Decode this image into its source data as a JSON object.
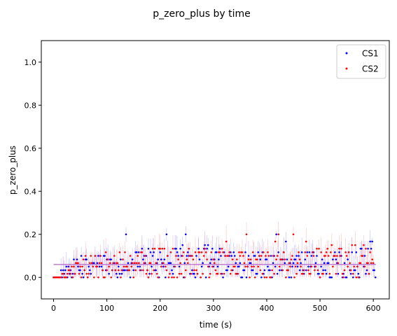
{
  "chart_data": {
    "type": "scatter",
    "title": "p_zero_plus by time",
    "xlabel": "time (s)",
    "ylabel": "p_zero_plus",
    "xlim": [
      -23,
      630
    ],
    "ylim": [
      -0.1,
      1.1
    ],
    "xticks": [
      0,
      100,
      200,
      300,
      400,
      500,
      600
    ],
    "yticks": [
      0.0,
      0.2,
      0.4,
      0.6,
      0.8,
      1.0
    ],
    "legend_position": "top-right",
    "error_bars": true,
    "reference_line": {
      "y": 0.06,
      "x_range": [
        0,
        605
      ],
      "color": "#a855c8"
    },
    "series": [
      {
        "name": "CS1",
        "color": "#0000ff",
        "sample_every_s": 2,
        "x_range": [
          0,
          605
        ],
        "y_keypoints": [
          [
            0,
            0.0
          ],
          [
            10,
            0.0
          ],
          [
            20,
            0.02
          ],
          [
            40,
            0.04
          ],
          [
            60,
            0.05
          ],
          [
            80,
            0.05
          ],
          [
            100,
            0.06
          ],
          [
            150,
            0.06
          ],
          [
            200,
            0.07
          ],
          [
            250,
            0.07
          ],
          [
            270,
            0.08
          ],
          [
            300,
            0.07
          ],
          [
            350,
            0.06
          ],
          [
            400,
            0.06
          ],
          [
            450,
            0.06
          ],
          [
            500,
            0.06
          ],
          [
            550,
            0.07
          ],
          [
            590,
            0.07
          ],
          [
            598,
            0.12
          ],
          [
            600,
            0.02
          ],
          [
            605,
            0.0
          ]
        ],
        "y_max_observed": 0.2
      },
      {
        "name": "CS2",
        "color": "#ff0000",
        "sample_every_s": 2,
        "x_range": [
          0,
          600
        ],
        "y_keypoints": [
          [
            0,
            0.0
          ],
          [
            15,
            0.0
          ],
          [
            25,
            0.02
          ],
          [
            40,
            0.03
          ],
          [
            60,
            0.05
          ],
          [
            80,
            0.05
          ],
          [
            100,
            0.06
          ],
          [
            150,
            0.06
          ],
          [
            200,
            0.07
          ],
          [
            250,
            0.07
          ],
          [
            300,
            0.07
          ],
          [
            350,
            0.06
          ],
          [
            400,
            0.06
          ],
          [
            450,
            0.06
          ],
          [
            500,
            0.07
          ],
          [
            550,
            0.07
          ],
          [
            570,
            0.08
          ],
          [
            590,
            0.07
          ],
          [
            600,
            0.03
          ]
        ],
        "y_max_observed": 0.23
      }
    ]
  }
}
